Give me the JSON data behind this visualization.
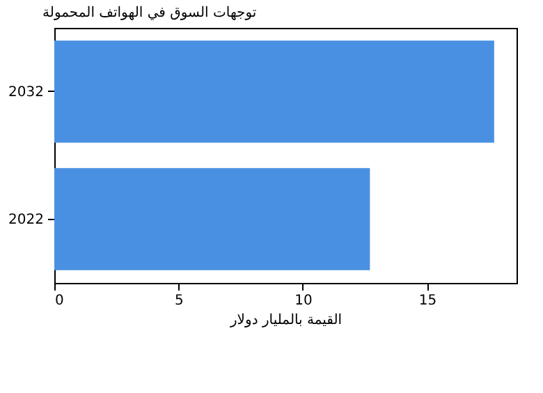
{
  "chart_data": {
    "type": "bar",
    "orientation": "horizontal",
    "title": "توجهات السوق في الهواتف المحمولة",
    "xlabel": "القيمة بالمليار دولار",
    "categories": [
      "2032",
      "2022"
    ],
    "values": [
      17.7,
      12.7
    ],
    "color": "#4a90e2",
    "xlim": [
      0,
      18.6
    ],
    "xticks": [
      0,
      5,
      10,
      15
    ],
    "grid": false
  }
}
